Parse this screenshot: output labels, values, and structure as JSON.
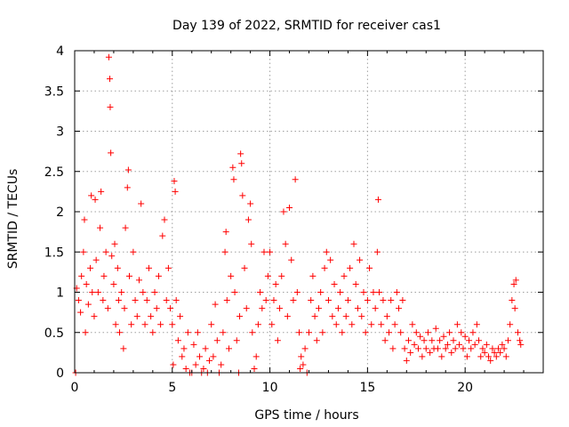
{
  "chart_data": {
    "type": "scatter",
    "title": "Day 139 of 2022, SRMTID for receiver cas1",
    "xlabel": "GPS time / hours",
    "ylabel": "SRMTID / TECUs",
    "xlim": [
      0,
      24
    ],
    "ylim": [
      0,
      4
    ],
    "xticks": [
      0,
      5,
      10,
      15,
      20
    ],
    "yticks": [
      0,
      0.5,
      1,
      1.5,
      2,
      2.5,
      3,
      3.5,
      4
    ],
    "xtick_labels": [
      "0",
      "5",
      "10",
      "15",
      "20"
    ],
    "ytick_labels": [
      "0",
      "0.5",
      "1",
      "1.5",
      "2",
      "2.5",
      "3",
      "3.5",
      "4"
    ],
    "grid": true,
    "marker": "+",
    "color": "#ff0000",
    "series": [
      {
        "name": "SRMTID",
        "points": [
          [
            0.05,
            0.0
          ],
          [
            0.1,
            1.05
          ],
          [
            0.2,
            0.9
          ],
          [
            0.3,
            0.75
          ],
          [
            0.35,
            1.2
          ],
          [
            0.45,
            1.5
          ],
          [
            0.5,
            1.9
          ],
          [
            0.55,
            0.5
          ],
          [
            0.6,
            1.1
          ],
          [
            0.7,
            0.85
          ],
          [
            0.8,
            1.3
          ],
          [
            0.85,
            2.2
          ],
          [
            0.9,
            1.0
          ],
          [
            1.0,
            0.7
          ],
          [
            1.05,
            2.15
          ],
          [
            1.1,
            1.4
          ],
          [
            1.2,
            1.0
          ],
          [
            1.3,
            1.8
          ],
          [
            1.35,
            2.25
          ],
          [
            1.45,
            0.9
          ],
          [
            1.5,
            1.2
          ],
          [
            1.6,
            1.5
          ],
          [
            1.7,
            0.8
          ],
          [
            1.75,
            3.92
          ],
          [
            1.8,
            3.65
          ],
          [
            1.82,
            3.3
          ],
          [
            1.85,
            2.73
          ],
          [
            1.9,
            1.45
          ],
          [
            2.0,
            1.1
          ],
          [
            2.05,
            1.6
          ],
          [
            2.1,
            0.6
          ],
          [
            2.2,
            1.3
          ],
          [
            2.25,
            0.9
          ],
          [
            2.3,
            0.5
          ],
          [
            2.4,
            1.0
          ],
          [
            2.5,
            0.3
          ],
          [
            2.55,
            0.8
          ],
          [
            2.6,
            1.8
          ],
          [
            2.7,
            2.3
          ],
          [
            2.75,
            2.52
          ],
          [
            2.8,
            1.2
          ],
          [
            2.9,
            0.6
          ],
          [
            3.0,
            1.5
          ],
          [
            3.1,
            0.9
          ],
          [
            3.2,
            0.7
          ],
          [
            3.3,
            1.15
          ],
          [
            3.4,
            2.1
          ],
          [
            3.5,
            1.0
          ],
          [
            3.6,
            0.6
          ],
          [
            3.7,
            0.9
          ],
          [
            3.8,
            1.3
          ],
          [
            3.9,
            0.7
          ],
          [
            4.0,
            0.5
          ],
          [
            4.1,
            1.0
          ],
          [
            4.2,
            0.8
          ],
          [
            4.3,
            1.2
          ],
          [
            4.4,
            0.6
          ],
          [
            4.5,
            1.7
          ],
          [
            4.6,
            1.9
          ],
          [
            4.7,
            0.9
          ],
          [
            4.8,
            1.3
          ],
          [
            4.9,
            0.8
          ],
          [
            5.0,
            0.6
          ],
          [
            5.05,
            0.1
          ],
          [
            5.1,
            2.38
          ],
          [
            5.15,
            2.25
          ],
          [
            5.2,
            0.9
          ],
          [
            5.3,
            0.4
          ],
          [
            5.4,
            0.7
          ],
          [
            5.5,
            0.2
          ],
          [
            5.6,
            0.3
          ],
          [
            5.7,
            0.05
          ],
          [
            5.8,
            0.5
          ],
          [
            5.9,
            0.0
          ],
          [
            6.0,
            0.0
          ],
          [
            6.1,
            0.35
          ],
          [
            6.2,
            0.1
          ],
          [
            6.3,
            0.5
          ],
          [
            6.4,
            0.2
          ],
          [
            6.5,
            0.0
          ],
          [
            6.6,
            0.05
          ],
          [
            6.7,
            0.3
          ],
          [
            6.8,
            0.0
          ],
          [
            6.9,
            0.15
          ],
          [
            7.0,
            0.6
          ],
          [
            7.1,
            0.2
          ],
          [
            7.2,
            0.85
          ],
          [
            7.3,
            0.4
          ],
          [
            7.4,
            0.0
          ],
          [
            7.5,
            0.1
          ],
          [
            7.6,
            0.5
          ],
          [
            7.7,
            1.5
          ],
          [
            7.75,
            1.75
          ],
          [
            7.8,
            0.9
          ],
          [
            7.9,
            0.3
          ],
          [
            8.0,
            1.2
          ],
          [
            8.1,
            2.55
          ],
          [
            8.15,
            2.4
          ],
          [
            8.2,
            1.0
          ],
          [
            8.3,
            0.4
          ],
          [
            8.4,
            0.0
          ],
          [
            8.45,
            0.7
          ],
          [
            8.5,
            2.72
          ],
          [
            8.55,
            2.6
          ],
          [
            8.6,
            2.2
          ],
          [
            8.7,
            1.3
          ],
          [
            8.8,
            0.8
          ],
          [
            8.9,
            1.9
          ],
          [
            9.0,
            2.1
          ],
          [
            9.05,
            1.6
          ],
          [
            9.1,
            0.5
          ],
          [
            9.2,
            0.05
          ],
          [
            9.3,
            0.2
          ],
          [
            9.4,
            0.6
          ],
          [
            9.5,
            1.0
          ],
          [
            9.6,
            0.8
          ],
          [
            9.7,
            1.5
          ],
          [
            9.8,
            0.9
          ],
          [
            9.9,
            1.2
          ],
          [
            10.0,
            1.5
          ],
          [
            10.1,
            0.6
          ],
          [
            10.2,
            0.9
          ],
          [
            10.3,
            1.1
          ],
          [
            10.4,
            0.4
          ],
          [
            10.5,
            0.8
          ],
          [
            10.6,
            1.2
          ],
          [
            10.7,
            2.0
          ],
          [
            10.8,
            1.6
          ],
          [
            10.9,
            0.7
          ],
          [
            11.0,
            2.05
          ],
          [
            11.1,
            1.4
          ],
          [
            11.2,
            0.9
          ],
          [
            11.3,
            2.4
          ],
          [
            11.4,
            1.0
          ],
          [
            11.5,
            0.5
          ],
          [
            11.55,
            0.05
          ],
          [
            11.6,
            0.2
          ],
          [
            11.7,
            0.1
          ],
          [
            11.8,
            0.3
          ],
          [
            11.9,
            0.0
          ],
          [
            12.0,
            0.5
          ],
          [
            12.1,
            0.9
          ],
          [
            12.2,
            1.2
          ],
          [
            12.3,
            0.7
          ],
          [
            12.4,
            0.4
          ],
          [
            12.5,
            0.8
          ],
          [
            12.6,
            1.0
          ],
          [
            12.7,
            0.5
          ],
          [
            12.8,
            1.3
          ],
          [
            12.9,
            1.5
          ],
          [
            13.0,
            0.9
          ],
          [
            13.1,
            1.4
          ],
          [
            13.2,
            0.7
          ],
          [
            13.3,
            1.1
          ],
          [
            13.4,
            0.6
          ],
          [
            13.5,
            0.8
          ],
          [
            13.6,
            1.0
          ],
          [
            13.7,
            0.5
          ],
          [
            13.8,
            1.2
          ],
          [
            13.9,
            0.7
          ],
          [
            14.0,
            0.9
          ],
          [
            14.1,
            1.3
          ],
          [
            14.2,
            0.6
          ],
          [
            14.3,
            1.6
          ],
          [
            14.4,
            1.1
          ],
          [
            14.5,
            0.8
          ],
          [
            14.6,
            1.4
          ],
          [
            14.7,
            0.7
          ],
          [
            14.8,
            1.0
          ],
          [
            14.9,
            0.5
          ],
          [
            15.0,
            0.9
          ],
          [
            15.1,
            1.3
          ],
          [
            15.2,
            0.6
          ],
          [
            15.3,
            1.0
          ],
          [
            15.4,
            0.8
          ],
          [
            15.5,
            1.5
          ],
          [
            15.55,
            2.15
          ],
          [
            15.6,
            1.0
          ],
          [
            15.7,
            0.6
          ],
          [
            15.8,
            0.9
          ],
          [
            15.9,
            0.4
          ],
          [
            16.0,
            0.7
          ],
          [
            16.1,
            0.5
          ],
          [
            16.2,
            0.9
          ],
          [
            16.3,
            0.3
          ],
          [
            16.4,
            0.6
          ],
          [
            16.5,
            1.0
          ],
          [
            16.6,
            0.8
          ],
          [
            16.7,
            0.5
          ],
          [
            16.8,
            0.9
          ],
          [
            16.9,
            0.3
          ],
          [
            17.0,
            0.15
          ],
          [
            17.1,
            0.4
          ],
          [
            17.2,
            0.25
          ],
          [
            17.3,
            0.6
          ],
          [
            17.4,
            0.35
          ],
          [
            17.5,
            0.5
          ],
          [
            17.6,
            0.3
          ],
          [
            17.7,
            0.45
          ],
          [
            17.8,
            0.2
          ],
          [
            17.9,
            0.4
          ],
          [
            18.0,
            0.3
          ],
          [
            18.1,
            0.5
          ],
          [
            18.2,
            0.25
          ],
          [
            18.3,
            0.4
          ],
          [
            18.4,
            0.3
          ],
          [
            18.5,
            0.55
          ],
          [
            18.6,
            0.3
          ],
          [
            18.7,
            0.4
          ],
          [
            18.8,
            0.2
          ],
          [
            18.9,
            0.45
          ],
          [
            19.0,
            0.3
          ],
          [
            19.1,
            0.35
          ],
          [
            19.2,
            0.5
          ],
          [
            19.3,
            0.25
          ],
          [
            19.4,
            0.4
          ],
          [
            19.5,
            0.3
          ],
          [
            19.6,
            0.6
          ],
          [
            19.7,
            0.35
          ],
          [
            19.8,
            0.5
          ],
          [
            19.9,
            0.3
          ],
          [
            20.0,
            0.45
          ],
          [
            20.1,
            0.2
          ],
          [
            20.2,
            0.4
          ],
          [
            20.3,
            0.3
          ],
          [
            20.4,
            0.5
          ],
          [
            20.5,
            0.35
          ],
          [
            20.6,
            0.6
          ],
          [
            20.7,
            0.4
          ],
          [
            20.8,
            0.2
          ],
          [
            20.9,
            0.3
          ],
          [
            21.0,
            0.25
          ],
          [
            21.1,
            0.35
          ],
          [
            21.2,
            0.2
          ],
          [
            21.3,
            0.15
          ],
          [
            21.4,
            0.3
          ],
          [
            21.5,
            0.25
          ],
          [
            21.6,
            0.2
          ],
          [
            21.7,
            0.3
          ],
          [
            21.8,
            0.25
          ],
          [
            21.9,
            0.35
          ],
          [
            22.0,
            0.3
          ],
          [
            22.1,
            0.2
          ],
          [
            22.2,
            0.4
          ],
          [
            22.3,
            0.6
          ],
          [
            22.4,
            0.9
          ],
          [
            22.5,
            1.1
          ],
          [
            22.55,
            0.8
          ],
          [
            22.6,
            1.15
          ],
          [
            22.7,
            0.5
          ],
          [
            22.8,
            0.4
          ],
          [
            22.85,
            0.35
          ]
        ]
      }
    ]
  }
}
